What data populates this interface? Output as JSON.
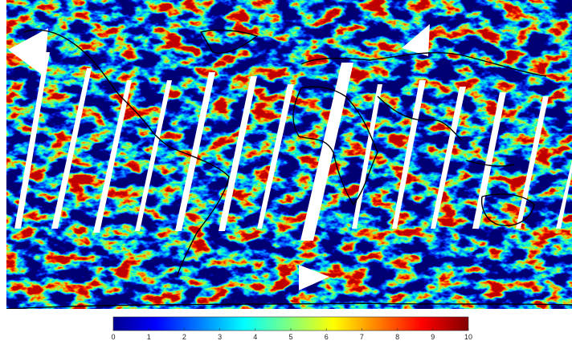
{
  "colorbar": {
    "range": [
      0,
      10
    ],
    "ticks": [
      0,
      1,
      2,
      3,
      4,
      5,
      6,
      7,
      8,
      9,
      10
    ]
  }
}
